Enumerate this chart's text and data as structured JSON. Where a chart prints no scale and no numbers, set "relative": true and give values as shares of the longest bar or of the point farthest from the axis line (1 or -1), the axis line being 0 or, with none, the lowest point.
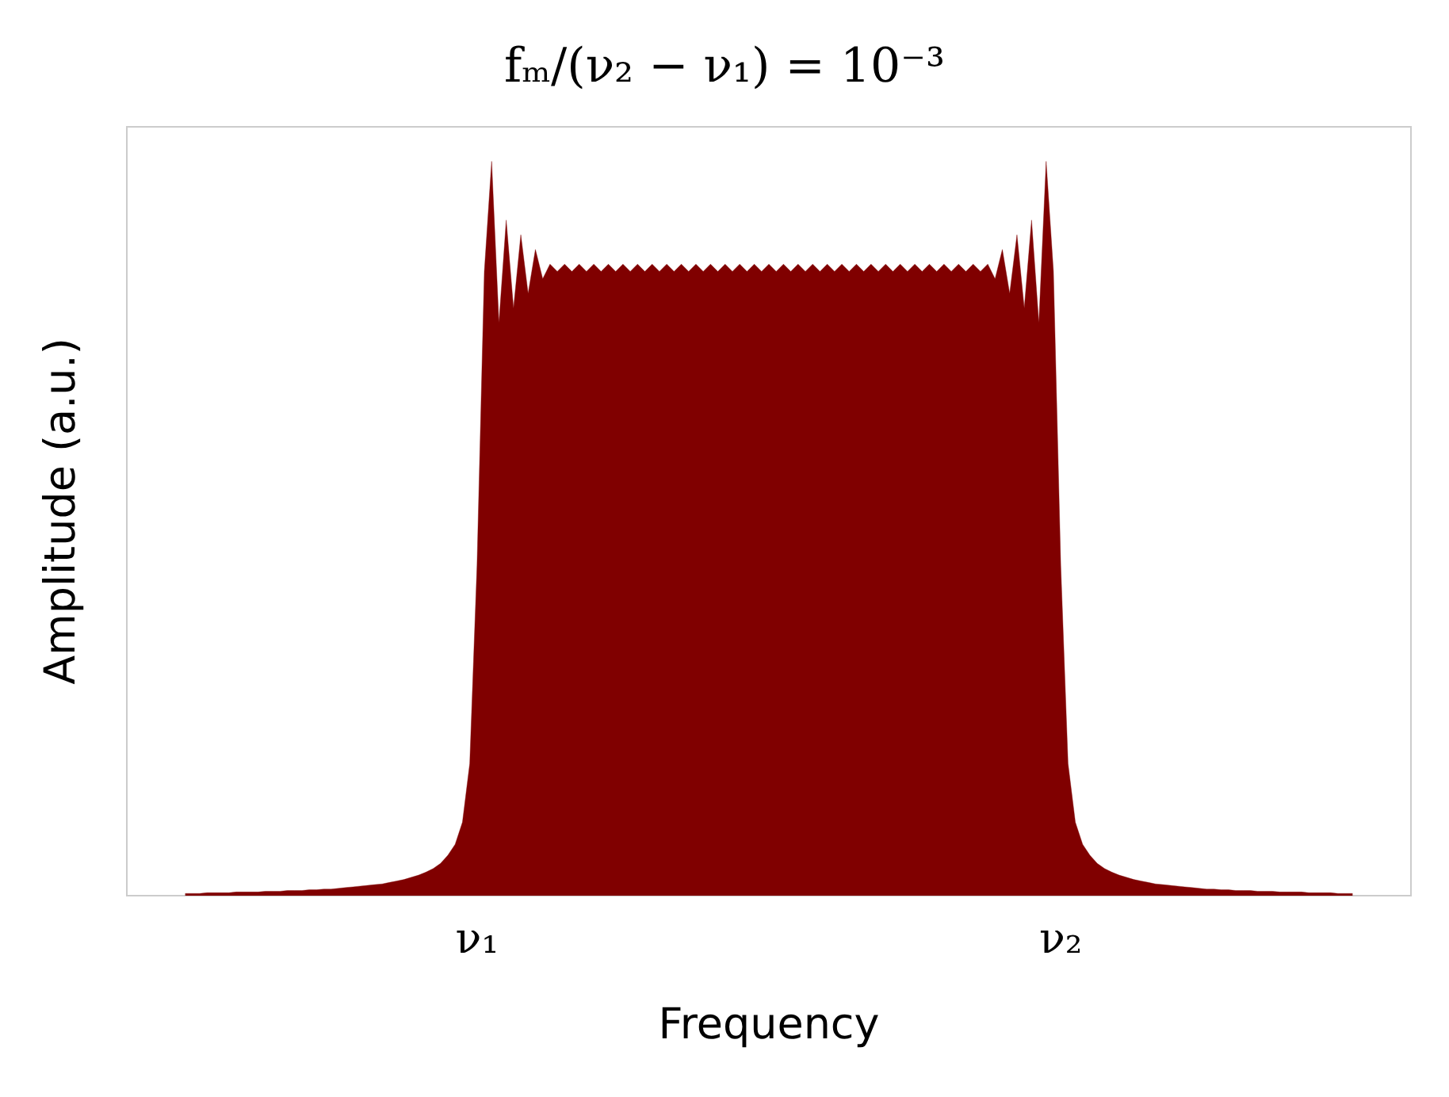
{
  "chart_data": {
    "type": "area",
    "title": "fₘ/(ν₂ − ν₁) = 10⁻³",
    "xlabel": "Frequency",
    "ylabel": "Amplitude (a.u.)",
    "relative": true,
    "grid": false,
    "categories": [
      null,
      null,
      null,
      null,
      null,
      null,
      null,
      null,
      null,
      null,
      null,
      null,
      null,
      null,
      null,
      null,
      null,
      null,
      null,
      null,
      null,
      null,
      null,
      null,
      null,
      null,
      null,
      null,
      null,
      null,
      null,
      null,
      null,
      null,
      null,
      null,
      null,
      null,
      null,
      null,
      null,
      null,
      null,
      null,
      null,
      null,
      null,
      null,
      "ν₁",
      null,
      null,
      null,
      null,
      null,
      null,
      null,
      null,
      null,
      null,
      null,
      null,
      null,
      null,
      null,
      null,
      null,
      null,
      null,
      null,
      null,
      null,
      null,
      null,
      null,
      null,
      null,
      null,
      null,
      null,
      null,
      null,
      null,
      null,
      null,
      null,
      null,
      null,
      null,
      null,
      null,
      null,
      null,
      null,
      null,
      null,
      null,
      null,
      null,
      null,
      null,
      null,
      null,
      null,
      null,
      null,
      null,
      null,
      null,
      null,
      null,
      null,
      null,
      null,
      null,
      null,
      null,
      null,
      null,
      null,
      null,
      null,
      null,
      null,
      null,
      null,
      null,
      null,
      null,
      "ν₂",
      null,
      null,
      null,
      null,
      null,
      null,
      null,
      null,
      null,
      null,
      null,
      null,
      null,
      null,
      null,
      null,
      null,
      null,
      null,
      null,
      null,
      null,
      null,
      null,
      null,
      null,
      null,
      null,
      null,
      null,
      null,
      null,
      null,
      null,
      null,
      null,
      null,
      null,
      null,
      null,
      null,
      null,
      null,
      null,
      null,
      null,
      null,
      null
    ],
    "series": [
      {
        "color": "#800000",
        "values": [
          null,
          null,
          null,
          null,
          null,
          null,
          null,
          null,
          0.003,
          0.003,
          0.003,
          0.004,
          0.004,
          0.004,
          0.004,
          0.005,
          0.005,
          0.005,
          0.005,
          0.006,
          0.006,
          0.006,
          0.007,
          0.007,
          0.007,
          0.008,
          0.008,
          0.009,
          0.009,
          0.01,
          0.011,
          0.012,
          0.013,
          0.014,
          0.015,
          0.016,
          0.018,
          0.02,
          0.022,
          0.025,
          0.028,
          0.032,
          0.037,
          0.044,
          0.055,
          0.07,
          0.1,
          0.18,
          0.45,
          0.85,
          1.0,
          0.78,
          0.92,
          0.8,
          0.9,
          0.82,
          0.88,
          0.84,
          0.86,
          0.85,
          0.86,
          0.85,
          0.86,
          0.85,
          0.86,
          0.85,
          0.86,
          0.85,
          0.86,
          0.85,
          0.86,
          0.85,
          0.86,
          0.85,
          0.86,
          0.85,
          0.86,
          0.85,
          0.86,
          0.85,
          0.86,
          0.85,
          0.86,
          0.85,
          0.86,
          0.85,
          0.86,
          0.85,
          0.86,
          0.85,
          0.86,
          0.85,
          0.86,
          0.85,
          0.86,
          0.85,
          0.86,
          0.85,
          0.86,
          0.85,
          0.86,
          0.85,
          0.86,
          0.85,
          0.86,
          0.85,
          0.86,
          0.85,
          0.86,
          0.85,
          0.86,
          0.85,
          0.86,
          0.85,
          0.86,
          0.85,
          0.86,
          0.85,
          0.86,
          0.84,
          0.88,
          0.82,
          0.9,
          0.8,
          0.92,
          0.78,
          1.0,
          0.85,
          0.45,
          0.18,
          0.1,
          0.07,
          0.055,
          0.044,
          0.037,
          0.032,
          0.028,
          0.025,
          0.022,
          0.02,
          0.018,
          0.016,
          0.015,
          0.014,
          0.013,
          0.012,
          0.011,
          0.01,
          0.009,
          0.009,
          0.008,
          0.008,
          0.007,
          0.007,
          0.007,
          0.006,
          0.006,
          0.006,
          0.005,
          0.005,
          0.005,
          0.005,
          0.004,
          0.004,
          0.004,
          0.004,
          0.003,
          0.003,
          0.003,
          null,
          null,
          null,
          null,
          null,
          null,
          null,
          null
        ]
      }
    ]
  }
}
